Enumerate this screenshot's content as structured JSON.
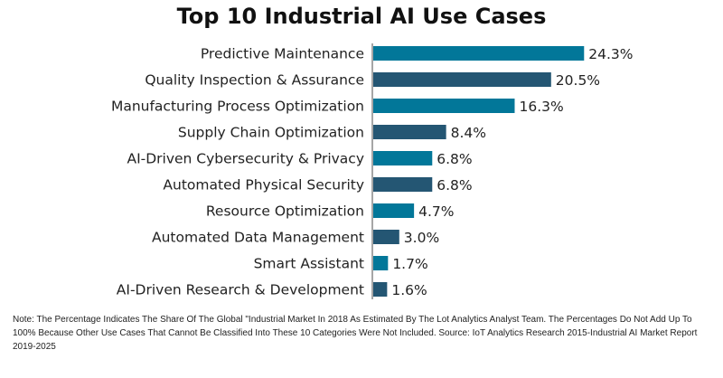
{
  "chart_data": {
    "type": "bar",
    "orientation": "horizontal",
    "title": "Top 10 Industrial AI Use Cases",
    "categories": [
      "Predictive Maintenance",
      "Quality Inspection & Assurance",
      "Manufacturing Process Optimization",
      "Supply Chain Optimization",
      "AI-Driven Cybersecurity & Privacy",
      "Automated Physical Security",
      "Resource Optimization",
      "Automated Data Management",
      "Smart Assistant",
      "AI-Driven Research & Development"
    ],
    "values": [
      24.3,
      20.5,
      16.3,
      8.4,
      6.8,
      6.8,
      4.7,
      3.0,
      1.7,
      1.6
    ],
    "value_labels": [
      "24.3%",
      "20.5%",
      "16.3%",
      "8.4%",
      "6.8%",
      "6.8%",
      "4.7%",
      "3.0%",
      "1.7%",
      "1.6%"
    ],
    "colors": [
      "#027799",
      "#245673"
    ],
    "xlabel": "",
    "ylabel": "",
    "grid": false
  },
  "note": "Note: The Percentage Indicates The Share Of The Global \"Industrial Market In 2018 As Estimated By The Lot Analytics Analyst Team. The Percentages Do Not Add Up To 100% Because Other Use Cases That Cannot Be Classified Into These 10 Categories Were Not Included. Source: IoT Analytics Research 2015-Industrial AI Market Report 2019-2025"
}
